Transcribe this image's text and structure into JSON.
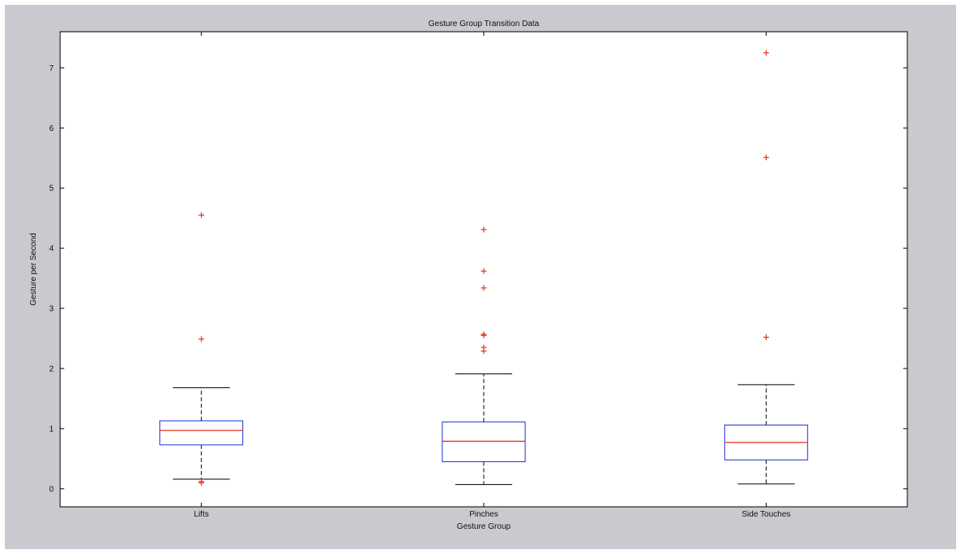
{
  "chart_data": {
    "type": "boxplot",
    "title": "Gesture Group Transition Data",
    "xlabel": "Gesture Group",
    "ylabel": "Gesture per Second",
    "ylim": [
      -0.3,
      7.6
    ],
    "yticks": [
      0,
      1,
      2,
      3,
      4,
      5,
      6,
      7
    ],
    "grid": false,
    "colors": {
      "figure_background": "#c9c9cf",
      "axes_background": "#ffffff",
      "box": "#1f2fd6",
      "median": "#e8321e",
      "whisker": "#000000",
      "outlier": "#e8321e"
    },
    "categories": [
      "Lifts",
      "Pinches",
      "Side Touches"
    ],
    "boxes": [
      {
        "category": "Lifts",
        "whisker_low": 0.16,
        "q1": 0.73,
        "median": 0.97,
        "q3": 1.13,
        "whisker_high": 1.68,
        "outliers": [
          0.1,
          0.12,
          2.49,
          4.55
        ]
      },
      {
        "category": "Pinches",
        "whisker_low": 0.07,
        "q1": 0.45,
        "median": 0.79,
        "q3": 1.11,
        "whisker_high": 1.91,
        "outliers": [
          2.29,
          2.35,
          2.55,
          2.57,
          3.34,
          3.62,
          4.31
        ]
      },
      {
        "category": "Side Touches",
        "whisker_low": 0.08,
        "q1": 0.48,
        "median": 0.77,
        "q3": 1.06,
        "whisker_high": 1.73,
        "outliers": [
          2.52,
          5.51,
          7.25
        ]
      }
    ]
  }
}
